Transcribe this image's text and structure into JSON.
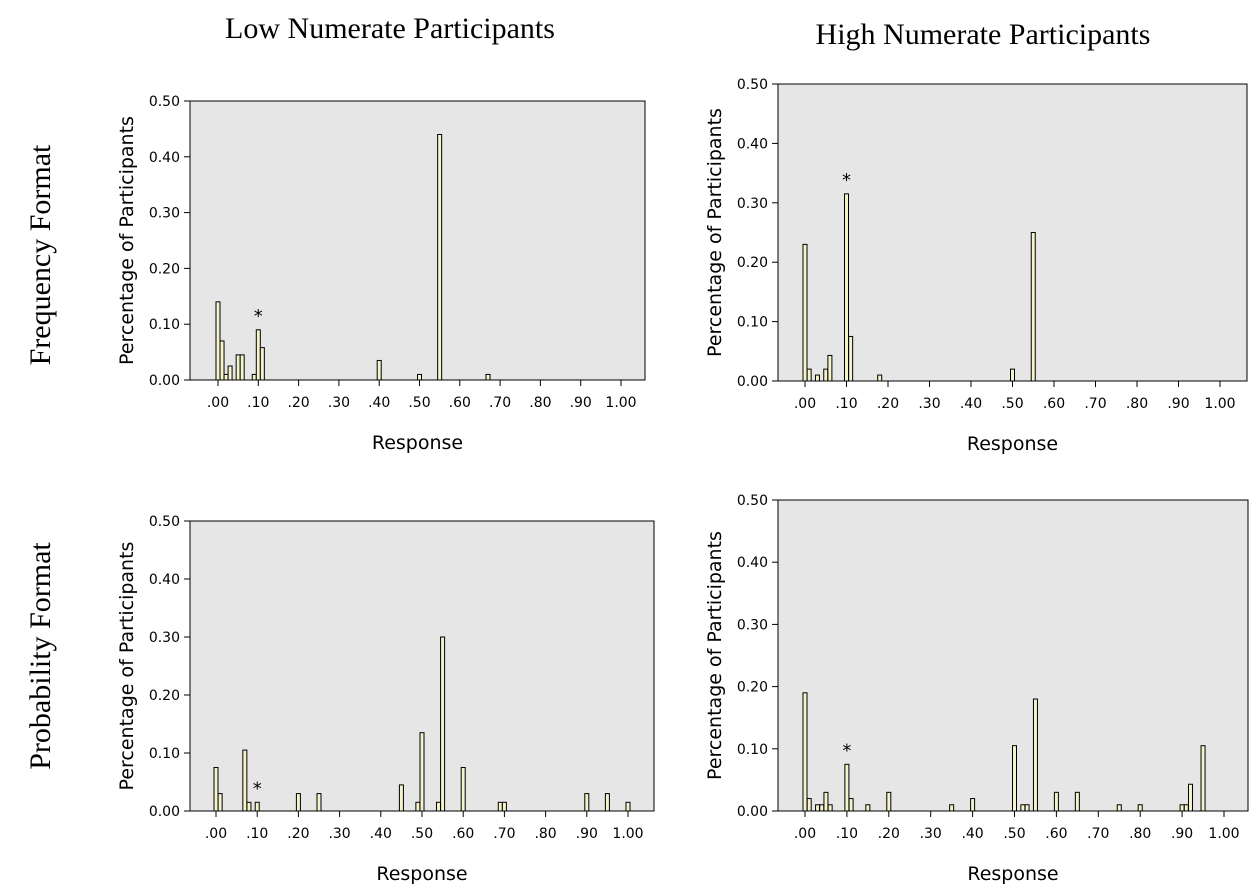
{
  "column_titles": [
    "Low Numerate Participants",
    "High Numerate Participants"
  ],
  "row_titles": [
    "Frequency Format",
    "Probability Format"
  ],
  "chart_data": [
    {
      "type": "bar",
      "title": "",
      "xlabel": "Response",
      "ylabel": "Percentage of Participants",
      "ylim": [
        0,
        0.5
      ],
      "yticks": [
        "0.00",
        "0.10",
        "0.20",
        "0.30",
        "0.40",
        "0.50"
      ],
      "xticks": [
        ".00",
        ".10",
        ".20",
        ".30",
        ".40",
        ".50",
        ".60",
        ".70",
        ".80",
        ".90",
        "1.00"
      ],
      "xlim": [
        0,
        1
      ],
      "grid": false,
      "x": [
        0.0,
        0.01,
        0.02,
        0.03,
        0.05,
        0.06,
        0.09,
        0.1,
        0.11,
        0.4,
        0.5,
        0.55,
        0.67
      ],
      "values": [
        0.14,
        0.07,
        0.01,
        0.025,
        0.045,
        0.045,
        0.01,
        0.09,
        0.058,
        0.035,
        0.01,
        0.44,
        0.01
      ],
      "annotations": [
        {
          "text": "*",
          "x": 0.1
        }
      ]
    },
    {
      "type": "bar",
      "title": "",
      "xlabel": "Response",
      "ylabel": "Percentage of Participants",
      "ylim": [
        0,
        0.5
      ],
      "yticks": [
        "0.00",
        "0.10",
        "0.20",
        "0.30",
        "0.40",
        "0.50"
      ],
      "xticks": [
        ".00",
        ".10",
        ".20",
        ".30",
        ".40",
        ".50",
        ".60",
        ".70",
        ".80",
        ".90",
        "1.00"
      ],
      "xlim": [
        0,
        1
      ],
      "grid": false,
      "x": [
        0.0,
        0.01,
        0.03,
        0.05,
        0.06,
        0.1,
        0.11,
        0.18,
        0.5,
        0.55
      ],
      "values": [
        0.23,
        0.02,
        0.01,
        0.02,
        0.043,
        0.315,
        0.075,
        0.01,
        0.02,
        0.25
      ],
      "annotations": [
        {
          "text": "*",
          "x": 0.1
        }
      ]
    },
    {
      "type": "bar",
      "title": "",
      "xlabel": "Response",
      "ylabel": "Percentage of Participants",
      "ylim": [
        0,
        0.5
      ],
      "yticks": [
        "0.00",
        "0.10",
        "0.20",
        "0.30",
        "0.40",
        "0.50"
      ],
      "xticks": [
        ".00",
        ".10",
        ".20",
        ".30",
        ".40",
        ".50",
        ".60",
        ".70",
        ".80",
        ".90",
        "1.00"
      ],
      "xlim": [
        0,
        1
      ],
      "grid": false,
      "x": [
        0.0,
        0.01,
        0.07,
        0.08,
        0.1,
        0.2,
        0.25,
        0.45,
        0.49,
        0.5,
        0.54,
        0.55,
        0.6,
        0.69,
        0.7,
        0.9,
        0.95,
        1.0
      ],
      "values": [
        0.075,
        0.03,
        0.105,
        0.015,
        0.015,
        0.03,
        0.03,
        0.045,
        0.015,
        0.135,
        0.015,
        0.3,
        0.075,
        0.015,
        0.015,
        0.03,
        0.03,
        0.015
      ],
      "annotations": [
        {
          "text": "*",
          "x": 0.1
        }
      ]
    },
    {
      "type": "bar",
      "title": "",
      "xlabel": "Response",
      "ylabel": "Percentage of Participants",
      "ylim": [
        0,
        0.5
      ],
      "yticks": [
        "0.00",
        "0.10",
        "0.20",
        "0.30",
        "0.40",
        "0.50"
      ],
      "xticks": [
        ".00",
        ".10",
        ".20",
        ".30",
        ".40",
        ".50",
        ".60",
        ".70",
        ".80",
        ".90",
        "1.00"
      ],
      "xlim": [
        0,
        1
      ],
      "grid": false,
      "x": [
        0.0,
        0.01,
        0.03,
        0.04,
        0.05,
        0.06,
        0.1,
        0.11,
        0.15,
        0.2,
        0.35,
        0.4,
        0.5,
        0.52,
        0.53,
        0.55,
        0.6,
        0.65,
        0.75,
        0.8,
        0.9,
        0.91,
        0.92,
        0.95
      ],
      "values": [
        0.19,
        0.02,
        0.01,
        0.01,
        0.03,
        0.01,
        0.075,
        0.02,
        0.01,
        0.03,
        0.01,
        0.02,
        0.105,
        0.01,
        0.01,
        0.18,
        0.03,
        0.03,
        0.01,
        0.01,
        0.01,
        0.01,
        0.043,
        0.105
      ],
      "annotations": [
        {
          "text": "*",
          "x": 0.1
        }
      ]
    }
  ]
}
